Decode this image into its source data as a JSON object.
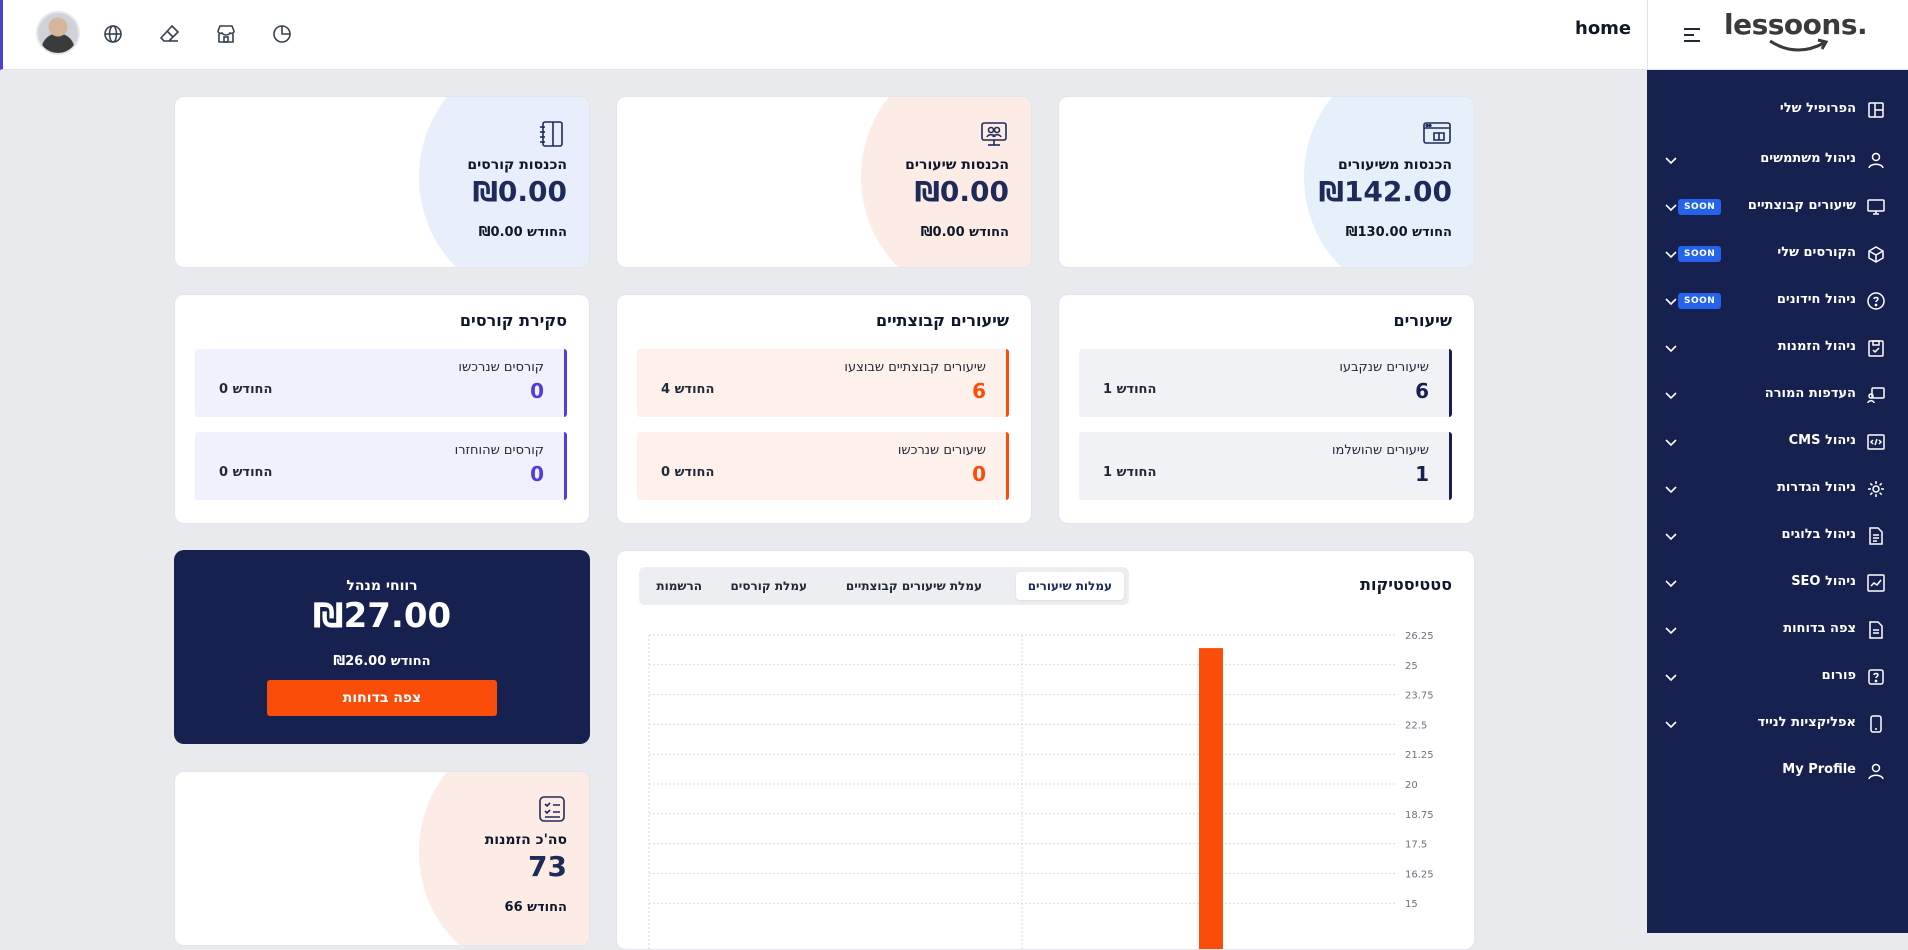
{
  "header": {
    "page_title": "home",
    "icons": [
      "globe-icon",
      "eraser-icon",
      "store-icon",
      "pie-chart-icon"
    ]
  },
  "brand": {
    "logo_text": "lessoons."
  },
  "sidebar": {
    "items": [
      {
        "label": "הפרופיל שלי",
        "icon": "dashboard-icon",
        "chevron": false,
        "soon": false
      },
      {
        "label": "ניהול משתמשים",
        "icon": "user-icon",
        "chevron": true,
        "soon": false
      },
      {
        "label": "שיעורים קבוצתיים",
        "icon": "monitor-icon",
        "chevron": true,
        "soon": true
      },
      {
        "label": "הקורסים שלי",
        "icon": "box-icon",
        "chevron": true,
        "soon": true
      },
      {
        "label": "ניהול חידונים",
        "icon": "question-icon",
        "chevron": true,
        "soon": true
      },
      {
        "label": "ניהול הזמנות",
        "icon": "calendar-icon",
        "chevron": true,
        "soon": false
      },
      {
        "label": "העדפות המורה",
        "icon": "teacher-icon",
        "chevron": true,
        "soon": false
      },
      {
        "label": "ניהול CMS",
        "icon": "code-icon",
        "chevron": true,
        "soon": false
      },
      {
        "label": "ניהול הגדרות",
        "icon": "gear-icon",
        "chevron": true,
        "soon": false
      },
      {
        "label": "ניהול בלוגים",
        "icon": "blog-icon",
        "chevron": true,
        "soon": false
      },
      {
        "label": "ניהול SEO",
        "icon": "seo-icon",
        "chevron": true,
        "soon": false
      },
      {
        "label": "צפה בדוחות",
        "icon": "report-icon",
        "chevron": true,
        "soon": false
      },
      {
        "label": "פורום",
        "icon": "forum-icon",
        "chevron": true,
        "soon": false
      },
      {
        "label": "אפליקציות לנייד",
        "icon": "phone-icon",
        "chevron": true,
        "soon": false
      },
      {
        "label": "My Profile",
        "icon": "user-icon",
        "chevron": false,
        "soon": false
      }
    ],
    "soon_label": "SOON"
  },
  "revenue_cards": [
    {
      "label": "הכנסות משיעורים",
      "amount": "₪142.00",
      "month": "החודש ₪130.00",
      "icon": "browser-book-icon"
    },
    {
      "label": "הכנסות שיעורים",
      "amount": "₪0.00",
      "month": "החודש ₪0.00",
      "icon": "monitor-users-icon"
    },
    {
      "label": "הכנסות קורסים",
      "amount": "₪0.00",
      "month": "החודש ₪0.00",
      "icon": "notebook-icon"
    }
  ],
  "stat_cards": [
    {
      "title": "שיעורים",
      "color": "#16214f",
      "bg": "#f1f2f5",
      "boxes": [
        {
          "label": "שיעורים שנקבעו",
          "value": "6",
          "month": "החודש 1"
        },
        {
          "label": "שיעורים שהושלמו",
          "value": "1",
          "month": "החודש 1"
        }
      ]
    },
    {
      "title": "שיעורים קבוצתיים",
      "color": "#fa4d09",
      "bg": "#fef1ec",
      "boxes": [
        {
          "label": "שיעורים קבוצתיים שבוצעו",
          "value": "6",
          "month": "החודש 4"
        },
        {
          "label": "שיעורים שנרכשו",
          "value": "0",
          "month": "החודש 0"
        }
      ]
    },
    {
      "title": "סקירת קורסים",
      "color": "#4f3ed8",
      "bg": "#f1f0fd",
      "boxes": [
        {
          "label": "קורסים שנרכשו",
          "value": "0",
          "month": "החודש 0"
        },
        {
          "label": "קורסים שהוחזרו",
          "value": "0",
          "month": "החודש 0"
        }
      ]
    }
  ],
  "profit": {
    "label": "רווחי מנהל",
    "amount": "₪27.00",
    "month": "החודש ₪26.00",
    "button": "צפה בדוחות"
  },
  "orders": {
    "label": "סה'כ הזמנות",
    "value": "73",
    "month": "החודש 66"
  },
  "statistics": {
    "title": "סטטיסטיקות",
    "tabs": [
      "עמלות שיעורים",
      "עמלת שיעורים קבוצתיים",
      "עמלת קורסים",
      "הרשמות"
    ],
    "active_tab": 0
  },
  "chart_data": {
    "type": "bar",
    "title": "",
    "xlabel": "",
    "ylabel": "",
    "ylim": [
      15,
      26.25
    ],
    "yticks": [
      "26.25",
      "25",
      "23.75",
      "22.5",
      "21.25",
      "20",
      "18.75",
      "17.5",
      "16.25",
      "15"
    ],
    "series": [
      {
        "values": [
          25.7
        ]
      }
    ],
    "bar_color": "#fa4d09",
    "grid": true
  }
}
